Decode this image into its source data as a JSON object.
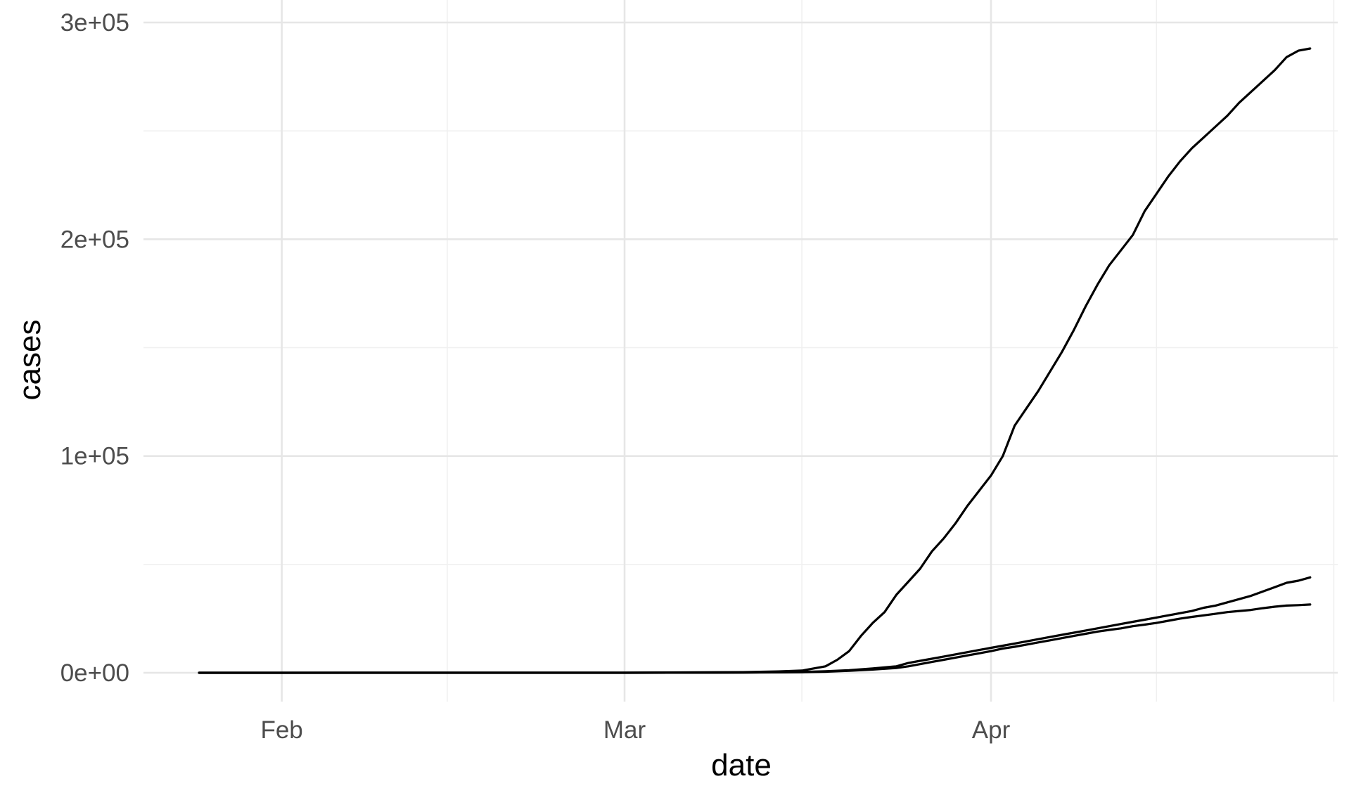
{
  "chart_data": {
    "type": "line",
    "title": "",
    "xlabel": "date",
    "ylabel": "cases",
    "grid": true,
    "legend": "none",
    "colors": {
      "line": "#000000",
      "grid_major": "#e6e6e6",
      "grid_minor": "#f0f0f0",
      "tick_text": "#4d4d4d"
    },
    "xlim": [
      "2020-01-19",
      "2020-05-03"
    ],
    "ylim": [
      -13000,
      302000
    ],
    "x_ticks": [
      {
        "date": "2020-02-01",
        "label": "Feb"
      },
      {
        "date": "2020-03-01",
        "label": "Mar"
      },
      {
        "date": "2020-04-01",
        "label": "Apr"
      }
    ],
    "x_minor_ticks": [
      "2020-02-15",
      "2020-03-16",
      "2020-04-15",
      "2020-04-30"
    ],
    "y_ticks": [
      {
        "value": 0,
        "label": "0e+00"
      },
      {
        "value": 100000,
        "label": "1e+05"
      },
      {
        "value": 200000,
        "label": "2e+05"
      },
      {
        "value": 300000,
        "label": "3e+05"
      }
    ],
    "y_minor_ticks": [
      50000,
      150000,
      250000
    ],
    "series": [
      {
        "x": [
          "2020-01-25",
          "2020-02-01",
          "2020-02-15",
          "2020-03-01",
          "2020-03-11",
          "2020-03-14",
          "2020-03-16",
          "2020-03-18",
          "2020-03-19",
          "2020-03-20",
          "2020-03-21",
          "2020-03-22",
          "2020-03-23",
          "2020-03-24",
          "2020-03-25",
          "2020-03-26",
          "2020-03-27",
          "2020-03-28",
          "2020-03-29",
          "2020-03-30",
          "2020-03-31",
          "2020-04-01",
          "2020-04-02",
          "2020-04-03",
          "2020-04-04",
          "2020-04-05",
          "2020-04-06",
          "2020-04-07",
          "2020-04-08",
          "2020-04-09",
          "2020-04-10",
          "2020-04-11",
          "2020-04-12",
          "2020-04-13",
          "2020-04-14",
          "2020-04-15",
          "2020-04-16",
          "2020-04-17",
          "2020-04-18",
          "2020-04-19",
          "2020-04-20",
          "2020-04-21",
          "2020-04-22",
          "2020-04-23",
          "2020-04-24",
          "2020-04-25",
          "2020-04-26",
          "2020-04-27",
          "2020-04-28"
        ],
        "y": [
          0,
          0,
          50,
          80,
          300,
          600,
          1000,
          3000,
          6000,
          10000,
          17000,
          23000,
          28000,
          36000,
          42000,
          48000,
          56000,
          62000,
          69000,
          77000,
          84000,
          91000,
          100000,
          114000,
          122000,
          130000,
          139000,
          148000,
          158000,
          169000,
          179000,
          188000,
          195000,
          202000,
          213000,
          221000,
          229000,
          236000,
          242000,
          247000,
          252000,
          257000,
          263000,
          268000,
          273000,
          278000,
          284000,
          287000,
          288000
        ]
      },
      {
        "x": [
          "2020-01-25",
          "2020-03-01",
          "2020-03-11",
          "2020-03-16",
          "2020-03-18",
          "2020-03-20",
          "2020-03-22",
          "2020-03-24",
          "2020-03-25",
          "2020-03-26",
          "2020-03-27",
          "2020-03-28",
          "2020-03-29",
          "2020-03-30",
          "2020-03-31",
          "2020-04-01",
          "2020-04-02",
          "2020-04-03",
          "2020-04-04",
          "2020-04-05",
          "2020-04-06",
          "2020-04-07",
          "2020-04-08",
          "2020-04-09",
          "2020-04-10",
          "2020-04-11",
          "2020-04-12",
          "2020-04-13",
          "2020-04-14",
          "2020-04-15",
          "2020-04-16",
          "2020-04-17",
          "2020-04-18",
          "2020-04-19",
          "2020-04-20",
          "2020-04-21",
          "2020-04-22",
          "2020-04-23",
          "2020-04-24",
          "2020-04-25",
          "2020-04-26",
          "2020-04-27",
          "2020-04-28"
        ],
        "y": [
          0,
          0,
          100,
          400,
          700,
          1200,
          2000,
          3000,
          4500,
          5500,
          6500,
          7500,
          8500,
          9500,
          10500,
          11500,
          12500,
          13500,
          14500,
          15500,
          16500,
          17500,
          18500,
          19500,
          20500,
          21500,
          22500,
          23500,
          24500,
          25500,
          26500,
          27500,
          28500,
          30000,
          31000,
          32500,
          34000,
          35500,
          37500,
          39500,
          41500,
          42500,
          44000
        ]
      },
      {
        "x": [
          "2020-01-25",
          "2020-03-01",
          "2020-03-11",
          "2020-03-16",
          "2020-03-18",
          "2020-03-20",
          "2020-03-22",
          "2020-03-24",
          "2020-03-25",
          "2020-03-26",
          "2020-03-27",
          "2020-03-28",
          "2020-03-29",
          "2020-03-30",
          "2020-03-31",
          "2020-04-01",
          "2020-04-02",
          "2020-04-03",
          "2020-04-04",
          "2020-04-05",
          "2020-04-06",
          "2020-04-07",
          "2020-04-08",
          "2020-04-09",
          "2020-04-10",
          "2020-04-11",
          "2020-04-12",
          "2020-04-13",
          "2020-04-14",
          "2020-04-15",
          "2020-04-16",
          "2020-04-17",
          "2020-04-18",
          "2020-04-19",
          "2020-04-20",
          "2020-04-21",
          "2020-04-22",
          "2020-04-23",
          "2020-04-24",
          "2020-04-25",
          "2020-04-26",
          "2020-04-27",
          "2020-04-28"
        ],
        "y": [
          0,
          0,
          100,
          300,
          500,
          900,
          1500,
          2200,
          3000,
          4000,
          5000,
          6000,
          7000,
          8000,
          9000,
          10000,
          11200,
          12000,
          13000,
          14000,
          15000,
          16000,
          17000,
          18000,
          19000,
          19800,
          20500,
          21500,
          22200,
          23000,
          24000,
          25000,
          25800,
          26500,
          27200,
          28000,
          28500,
          29000,
          29800,
          30500,
          31000,
          31200,
          31500
        ]
      }
    ]
  }
}
